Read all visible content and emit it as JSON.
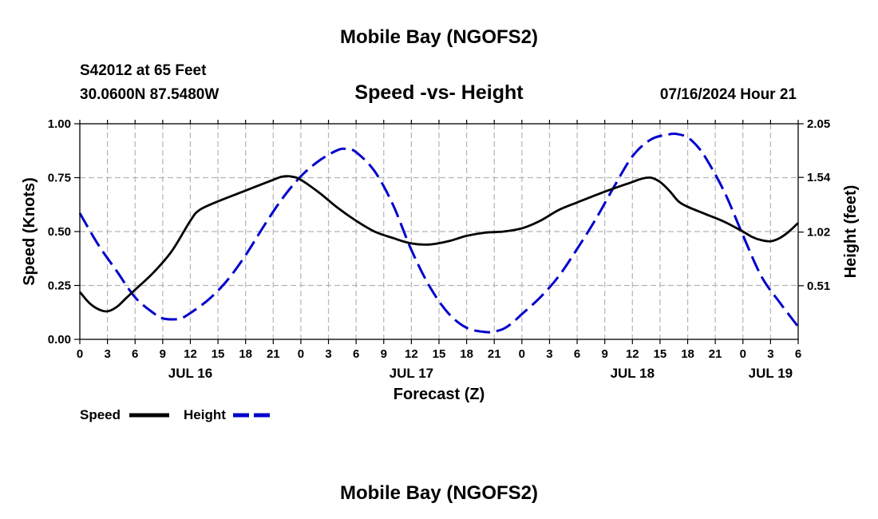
{
  "page": {
    "title": "Mobile Bay (NGOFS2)",
    "footer_title": "Mobile Bay (NGOFS2)",
    "station": "S42012 at 65 Feet",
    "coords": "30.0600N  87.5480W",
    "subtitle": "Speed -vs- Height",
    "timestamp": "07/16/2024 Hour 21"
  },
  "chart_data": {
    "type": "line",
    "title": "Speed -vs- Height",
    "xlabel": "Forecast (Z)",
    "ylabel": "Speed (Knots)",
    "y2label": "Height (feet)",
    "x_unit": "hours from JUL 16 00Z",
    "xlim": [
      0,
      78
    ],
    "ylim": [
      0,
      1
    ],
    "y2lim": [
      0,
      2.05
    ],
    "grid": true,
    "x_ticks": [
      {
        "x": 0,
        "label": "0"
      },
      {
        "x": 3,
        "label": "3"
      },
      {
        "x": 6,
        "label": "6"
      },
      {
        "x": 9,
        "label": "9"
      },
      {
        "x": 12,
        "label": "12"
      },
      {
        "x": 15,
        "label": "15"
      },
      {
        "x": 18,
        "label": "18"
      },
      {
        "x": 21,
        "label": "21"
      },
      {
        "x": 24,
        "label": "0"
      },
      {
        "x": 27,
        "label": "3"
      },
      {
        "x": 30,
        "label": "6"
      },
      {
        "x": 33,
        "label": "9"
      },
      {
        "x": 36,
        "label": "12"
      },
      {
        "x": 39,
        "label": "15"
      },
      {
        "x": 42,
        "label": "18"
      },
      {
        "x": 45,
        "label": "21"
      },
      {
        "x": 48,
        "label": "0"
      },
      {
        "x": 51,
        "label": "3"
      },
      {
        "x": 54,
        "label": "6"
      },
      {
        "x": 57,
        "label": "9"
      },
      {
        "x": 60,
        "label": "12"
      },
      {
        "x": 63,
        "label": "15"
      },
      {
        "x": 66,
        "label": "18"
      },
      {
        "x": 69,
        "label": "21"
      },
      {
        "x": 72,
        "label": "0"
      },
      {
        "x": 75,
        "label": "3"
      },
      {
        "x": 78,
        "label": "6"
      }
    ],
    "y_ticks": [
      {
        "v": 0,
        "label": "0.00"
      },
      {
        "v": 0.25,
        "label": "0.25"
      },
      {
        "v": 0.5,
        "label": "0.50"
      },
      {
        "v": 0.75,
        "label": "0.75"
      },
      {
        "v": 1.0,
        "label": "1.00"
      }
    ],
    "y2_ticks": [
      {
        "v": 0.51,
        "label": "0.51"
      },
      {
        "v": 1.02,
        "label": "1.02"
      },
      {
        "v": 1.54,
        "label": "1.54"
      },
      {
        "v": 2.05,
        "label": "2.05"
      }
    ],
    "date_labels": [
      {
        "x": 12,
        "label": "JUL 16"
      },
      {
        "x": 36,
        "label": "JUL 17"
      },
      {
        "x": 60,
        "label": "JUL 18"
      },
      {
        "x": 75,
        "label": "JUL 19"
      }
    ],
    "series": [
      {
        "name": "Speed",
        "axis": "left",
        "color": "#000000",
        "dash": "solid",
        "x": [
          0,
          1,
          2,
          3,
          4,
          5,
          6,
          8,
          10,
          12,
          13,
          15,
          18,
          21,
          22,
          23,
          24,
          26,
          28,
          30,
          32,
          34,
          36,
          38,
          40,
          42,
          44,
          46,
          48,
          50,
          52,
          54,
          57,
          60,
          61,
          62,
          63,
          64,
          65,
          66,
          68,
          70,
          72,
          73,
          74,
          75,
          76,
          77,
          78
        ],
        "values": [
          0.22,
          0.17,
          0.14,
          0.13,
          0.15,
          0.19,
          0.23,
          0.31,
          0.41,
          0.55,
          0.6,
          0.64,
          0.69,
          0.74,
          0.755,
          0.755,
          0.74,
          0.68,
          0.61,
          0.55,
          0.5,
          0.47,
          0.445,
          0.44,
          0.455,
          0.48,
          0.495,
          0.5,
          0.515,
          0.55,
          0.6,
          0.635,
          0.685,
          0.73,
          0.745,
          0.75,
          0.73,
          0.69,
          0.64,
          0.615,
          0.58,
          0.545,
          0.5,
          0.475,
          0.46,
          0.455,
          0.47,
          0.5,
          0.54
        ]
      },
      {
        "name": "Height",
        "axis": "right",
        "color": "#0000cc",
        "dash": "dashed",
        "x": [
          0,
          2,
          4,
          6,
          8,
          9,
          10,
          11,
          12,
          14,
          16,
          18,
          20,
          22,
          24,
          26,
          28,
          29,
          30,
          32,
          34,
          36,
          38,
          40,
          42,
          44,
          45,
          46,
          47,
          48,
          50,
          52,
          54,
          56,
          58,
          60,
          62,
          64,
          65,
          66,
          67,
          68,
          70,
          72,
          74,
          76,
          78
        ],
        "values": [
          1.2,
          0.9,
          0.65,
          0.4,
          0.25,
          0.2,
          0.19,
          0.2,
          0.25,
          0.38,
          0.56,
          0.8,
          1.08,
          1.34,
          1.55,
          1.7,
          1.8,
          1.81,
          1.78,
          1.6,
          1.28,
          0.85,
          0.5,
          0.25,
          0.11,
          0.07,
          0.075,
          0.1,
          0.16,
          0.24,
          0.4,
          0.6,
          0.86,
          1.14,
          1.45,
          1.74,
          1.9,
          1.95,
          1.95,
          1.92,
          1.84,
          1.72,
          1.4,
          0.99,
          0.6,
          0.35,
          0.12
        ]
      }
    ],
    "legend": [
      {
        "label": "Speed",
        "color": "#000000",
        "dash": "solid"
      },
      {
        "label": "Height",
        "color": "#0000cc",
        "dash": "dashed"
      }
    ]
  }
}
